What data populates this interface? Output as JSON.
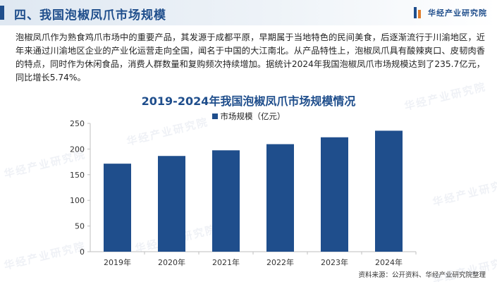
{
  "header": {
    "title": "四、我国泡椒凤爪市场规模",
    "logo_text": "华经产业研究院"
  },
  "paragraph": "泡椒凤爪作为熟食鸡爪市场中的重要产品，其发源于成都平原，早期属于当地特色的民间美食，后逐渐流行于川渝地区，近年来通过川渝地区企业的产业化运营走向全国，闻名于中国的大江南北。从产品特性上，泡椒凤爪具有酸辣爽口、皮韧肉香的特点，同时作为休闲食品，消费人群数量和复购频次持续增加。据统计2024年我国泡椒凤爪市场规模达到了235.7亿元，同比增长5.74%。",
  "watermark_text": "华经产业研究院",
  "source": "资料来源：公开资料、华经产业研究院整理",
  "colors": {
    "accent": "#1f4e8c",
    "bar": "#1f4e8c",
    "axis": "#bfbfbf"
  },
  "chart_data": {
    "type": "bar",
    "title": "2019-2024年我国泡椒凤爪市场规模情况",
    "legend_position": "top",
    "categories": [
      "2019年",
      "2020年",
      "2021年",
      "2022年",
      "2023年",
      "2024年"
    ],
    "series": [
      {
        "name": "市场规模（亿元）",
        "values": [
          171.5,
          186.5,
          197.5,
          209.5,
          222.9,
          235.7
        ]
      }
    ],
    "ylim": [
      0,
      250
    ],
    "yticks": [
      0,
      50,
      100,
      150,
      200,
      250
    ],
    "grid": false
  }
}
